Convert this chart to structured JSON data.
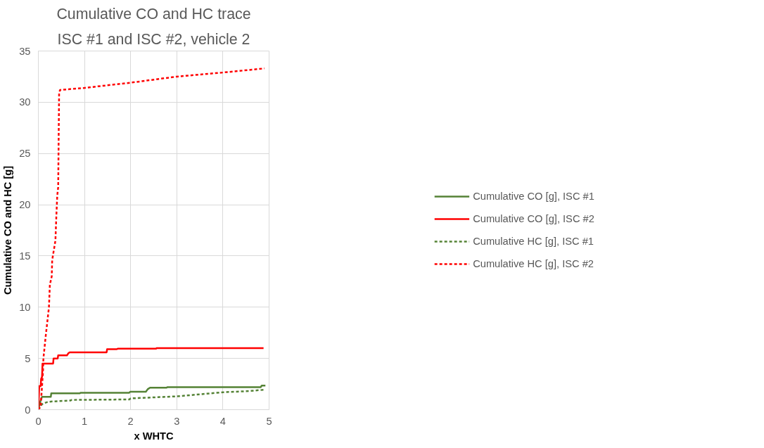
{
  "chart_data": {
    "type": "line",
    "title": "Cumulative CO and HC trace",
    "subtitle": "ISC #1 and ISC #2, vehicle 2",
    "xlabel": "x WHTC",
    "ylabel": "Cumulative CO and HC [g]",
    "xlim": [
      0,
      5
    ],
    "xticks": [
      0,
      1,
      2,
      3,
      4,
      5
    ],
    "ylim": [
      0,
      35
    ],
    "yticks": [
      0,
      5,
      10,
      15,
      20,
      25,
      30,
      35
    ],
    "grid": true,
    "legend": "right",
    "marker": "none",
    "series": [
      {
        "name": "Cumulative CO [g], ISC #1",
        "color": "#548235",
        "line_style": "solid",
        "x": [
          0,
          0.05,
          0.08,
          0.27,
          0.28,
          0.9,
          0.92,
          1.97,
          1.99,
          2.33,
          2.37,
          2.42,
          2.78,
          2.8,
          4.82,
          4.84,
          4.92
        ],
        "values": [
          0,
          0.9,
          1.25,
          1.25,
          1.6,
          1.6,
          1.65,
          1.65,
          1.75,
          1.75,
          2.0,
          2.15,
          2.15,
          2.2,
          2.2,
          2.35,
          2.35
        ]
      },
      {
        "name": "Cumulative CO [g], ISC #2",
        "color": "#ff0000",
        "line_style": "solid",
        "x": [
          0,
          0.02,
          0.05,
          0.06,
          0.08,
          0.09,
          0.32,
          0.33,
          0.42,
          0.43,
          0.62,
          0.65,
          0.68,
          1.48,
          1.49,
          1.7,
          1.72,
          2.55,
          2.56,
          4.88
        ],
        "values": [
          0,
          2.3,
          2.3,
          3.0,
          3.2,
          4.5,
          4.5,
          5.0,
          5.0,
          5.3,
          5.3,
          5.5,
          5.6,
          5.6,
          5.9,
          5.9,
          5.95,
          5.95,
          6.0,
          6.0
        ]
      },
      {
        "name": "Cumulative HC [g], ISC #1",
        "color": "#548235",
        "line_style": "dashed",
        "x": [
          0,
          0.05,
          0.1,
          0.2,
          0.3,
          0.7,
          0.72,
          1.97,
          2.0,
          2.5,
          3.0,
          3.5,
          4.0,
          4.5,
          4.92
        ],
        "values": [
          0,
          0.4,
          0.6,
          0.75,
          0.8,
          0.9,
          0.95,
          1.0,
          1.1,
          1.2,
          1.3,
          1.5,
          1.7,
          1.8,
          1.95
        ]
      },
      {
        "name": "Cumulative HC [g], ISC #2",
        "color": "#ff0000",
        "line_style": "dashed",
        "x": [
          0,
          0.05,
          0.1,
          0.11,
          0.16,
          0.23,
          0.25,
          0.29,
          0.3,
          0.37,
          0.39,
          0.41,
          0.43,
          0.45,
          0.47,
          1.0,
          1.99,
          3.0,
          4.0,
          4.9
        ],
        "values": [
          0,
          0.3,
          3.6,
          5,
          7.2,
          10,
          12.2,
          13,
          14.6,
          16.5,
          18.9,
          20.9,
          21.7,
          30.9,
          31.2,
          31.4,
          31.9,
          32.5,
          32.9,
          33.3
        ]
      }
    ]
  }
}
